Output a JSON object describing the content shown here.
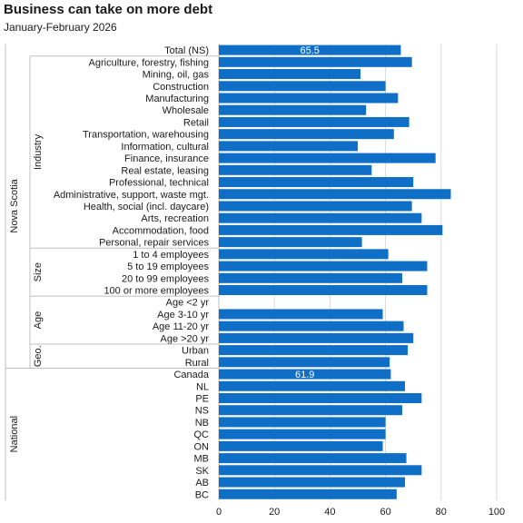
{
  "chart_data": {
    "type": "bar",
    "orientation": "horizontal",
    "title": "Business  can take on more debt",
    "subtitle": "January-February  2026",
    "xlim": [
      0,
      100
    ],
    "xticks": [
      0,
      20,
      40,
      60,
      80,
      100
    ],
    "grid": "vertical",
    "legend": "none",
    "bar_color": "#0f6fc6",
    "categories": [
      "Total (NS)",
      "Agriculture, forestry, fishing",
      "Mining, oil, gas",
      "Construction",
      "Manufacturing",
      "Wholesale",
      "Retail",
      "Transportation, warehousing",
      "Information, cultural",
      "Finance, insurance",
      "Real estate, leasing",
      "Professional, technical",
      "Administrative, support, waste mgt.",
      "Health, social (incl. daycare)",
      "Arts, recreation",
      "Accommodation, food",
      "Personal, repair services",
      "1 to 4 employees",
      "5 to 19 employees",
      "20 to 99 employees",
      "100 or more employees",
      "Age <2 yr",
      "Age 3-10 yr",
      "Age 11-20 yr",
      "Age >20 yr",
      "Urban",
      "Rural",
      "Canada",
      "NL",
      "PE",
      "NS",
      "NB",
      "QC",
      "ON",
      "MB",
      "SK",
      "AB",
      "BC"
    ],
    "values": [
      65.5,
      69.5,
      51,
      60,
      64.5,
      53,
      68.5,
      63,
      50,
      78,
      55,
      70,
      83.5,
      69.5,
      73,
      80.5,
      51.5,
      61,
      75,
      66,
      75,
      null,
      59,
      66.5,
      70,
      68,
      61.5,
      61.9,
      67,
      73,
      66,
      60,
      60,
      59,
      67.5,
      73,
      67,
      64
    ],
    "data_labels": [
      {
        "category": "Total (NS)",
        "text": "65.5"
      },
      {
        "category": "Canada",
        "text": "61.9"
      }
    ],
    "groups": [
      {
        "label": "Nova Scotia",
        "start": 0,
        "end": 26
      },
      {
        "label": "Industry",
        "start": 1,
        "end": 16
      },
      {
        "label": "Size",
        "start": 17,
        "end": 20
      },
      {
        "label": "Age",
        "start": 21,
        "end": 24
      },
      {
        "label": "Geo.",
        "start": 25,
        "end": 26
      },
      {
        "label": "National",
        "start": 27,
        "end": 37
      }
    ]
  }
}
